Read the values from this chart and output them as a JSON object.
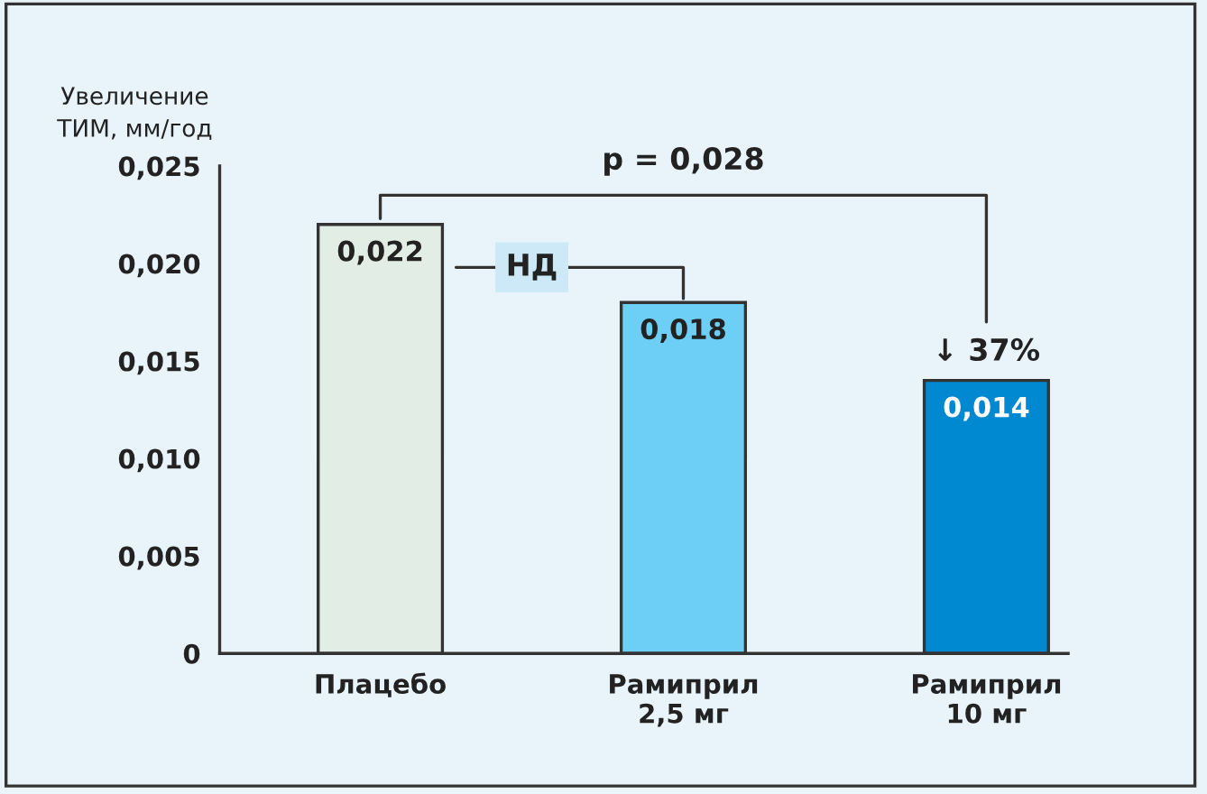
{
  "chart_data": {
    "type": "bar",
    "ylabel": "Увеличение\nТИМ, мм/год",
    "categories": [
      "Плацебо",
      "Рамиприл\n2,5 мг",
      "Рамиприл\n10 мг"
    ],
    "values": [
      0.022,
      0.018,
      0.014
    ],
    "colors": [
      "#e2ede5",
      "#6dcff6",
      "#0088d0"
    ],
    "value_labels": [
      "0,022",
      "0,018",
      "0,014"
    ],
    "ylim": [
      0,
      0.025
    ],
    "yticks": [
      0,
      {
        "value": 0.005,
        "label": "0,005"
      },
      {
        "value": 0.01,
        "label": "0,010"
      },
      {
        "value": 0.015,
        "label": "0,015"
      },
      {
        "value": 0.02,
        "label": "0,020"
      },
      {
        "value": 0.025,
        "label": "0,025"
      }
    ],
    "annotations": [
      "p = 0,028",
      "НД",
      "↓ 37%"
    ],
    "grid": false,
    "legend": false
  }
}
